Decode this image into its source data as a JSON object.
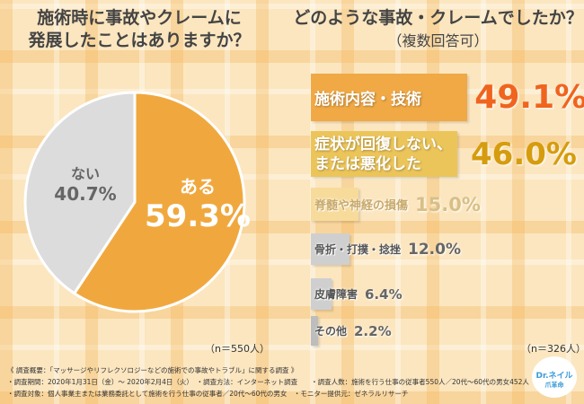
{
  "left": {
    "title_line1": "施術時に事故やクレームに",
    "title_line2": "発展したことはありますか？",
    "n_label": "（n＝550人）"
  },
  "right": {
    "title_line1": "どのような事故・クレームでしたか？",
    "title_line2": "（複数回答可）",
    "n_label": "（n＝326人）"
  },
  "chart_data": [
    {
      "type": "pie",
      "title": "施術時に事故やクレームに発展したことはありますか？",
      "slices": [
        {
          "label": "ある",
          "value": 59.3,
          "value_label": "59.3%",
          "color": "#f0a83e"
        },
        {
          "label": "ない",
          "value": 40.7,
          "value_label": "40.7%",
          "color": "#dcdcdc"
        }
      ]
    },
    {
      "type": "bar",
      "orientation": "horizontal",
      "title": "どのような事故・クレームでしたか？（複数回答可）",
      "categories": [
        "施術内容・技術",
        "症状が回復しない、または悪化した",
        "脊髄や神経の損傷",
        "骨折・打撲・捻挫",
        "皮膚障害",
        "その他"
      ],
      "values": [
        49.1,
        46.0,
        15.0,
        12.0,
        6.4,
        2.2
      ],
      "value_labels": [
        "49.1%",
        "46.0%",
        "15.0%",
        "12.0%",
        "6.4%",
        "2.2%"
      ],
      "bar_colors": [
        "#f0a945",
        "#ecc55a",
        "#f7db9b",
        "#cfcfcf",
        "#cfcfcf",
        "#bdbdbd"
      ],
      "value_colors": [
        "#f0641e",
        "#d59c0e",
        "#d8bf86",
        "#666666",
        "#666666",
        "#666666"
      ]
    }
  ],
  "footer": {
    "line1": "《 調査概要：「マッサージやリフレクソロジーなどの施術での事故やトラブル」に関する調査 》",
    "line2a": "・調査期間：2020年1月31日（金）～ 2020年2月4日（火）",
    "line2b": "・調査方法：インターネット調査",
    "line2c": "・調査人数：施術を行う仕事の従事者550人／20代～60代の男女452人",
    "line3a": "・調査対象：個人事業主または業務委託として施術を行う仕事の従事者／20代～60代の男女",
    "line3b": "・モニター提供元：ゼネラルリサーチ"
  },
  "logo": {
    "text": "Dr.ネイル",
    "sub": "爪革命"
  }
}
